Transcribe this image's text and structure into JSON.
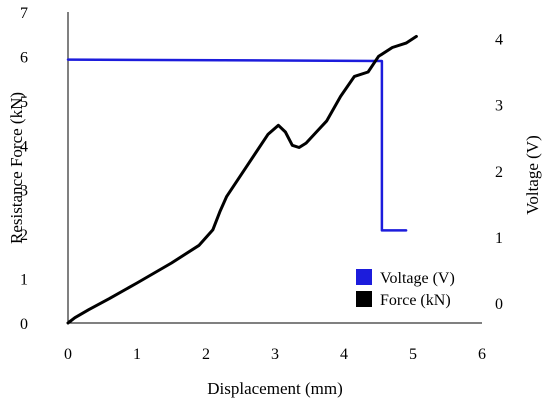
{
  "chart_data": {
    "type": "line",
    "title": "",
    "xlabel": "Displacement (mm)",
    "ylabel_left": "Resistance Force (kN)",
    "ylabel_right": "Voltage (V)",
    "xlim": [
      0,
      6
    ],
    "ylim_left": [
      0,
      7
    ],
    "ylim_right": [
      -0.3,
      4.4
    ],
    "x_ticks": [
      "0",
      "1",
      "2",
      "3",
      "4",
      "5",
      "6"
    ],
    "y_left_ticks": [
      "0",
      "1",
      "2",
      "3",
      "4",
      "5",
      "6",
      "7"
    ],
    "y_right_ticks": [
      "0",
      "1",
      "2",
      "3",
      "4"
    ],
    "grid": false,
    "legend_position": "bottom-right",
    "series": [
      {
        "name": "Voltage (V)",
        "axis": "right",
        "color": "#1c1cdc",
        "x": [
          0,
          4.55,
          4.55,
          4.9
        ],
        "y": [
          3.68,
          3.66,
          1.1,
          1.1
        ]
      },
      {
        "name": "Force (kN)",
        "axis": "left",
        "color": "#000000",
        "x": [
          0,
          0.1,
          0.3,
          0.6,
          1.0,
          1.5,
          1.9,
          2.1,
          2.2,
          2.3,
          2.6,
          2.9,
          3.05,
          3.15,
          3.25,
          3.35,
          3.45,
          3.6,
          3.75,
          3.95,
          4.15,
          4.35,
          4.5,
          4.7,
          4.9,
          5.05
        ],
        "y": [
          0,
          0.12,
          0.3,
          0.55,
          0.9,
          1.35,
          1.75,
          2.1,
          2.5,
          2.85,
          3.55,
          4.25,
          4.45,
          4.3,
          4.0,
          3.95,
          4.05,
          4.3,
          4.55,
          5.1,
          5.55,
          5.65,
          6.0,
          6.2,
          6.3,
          6.45
        ]
      }
    ]
  }
}
